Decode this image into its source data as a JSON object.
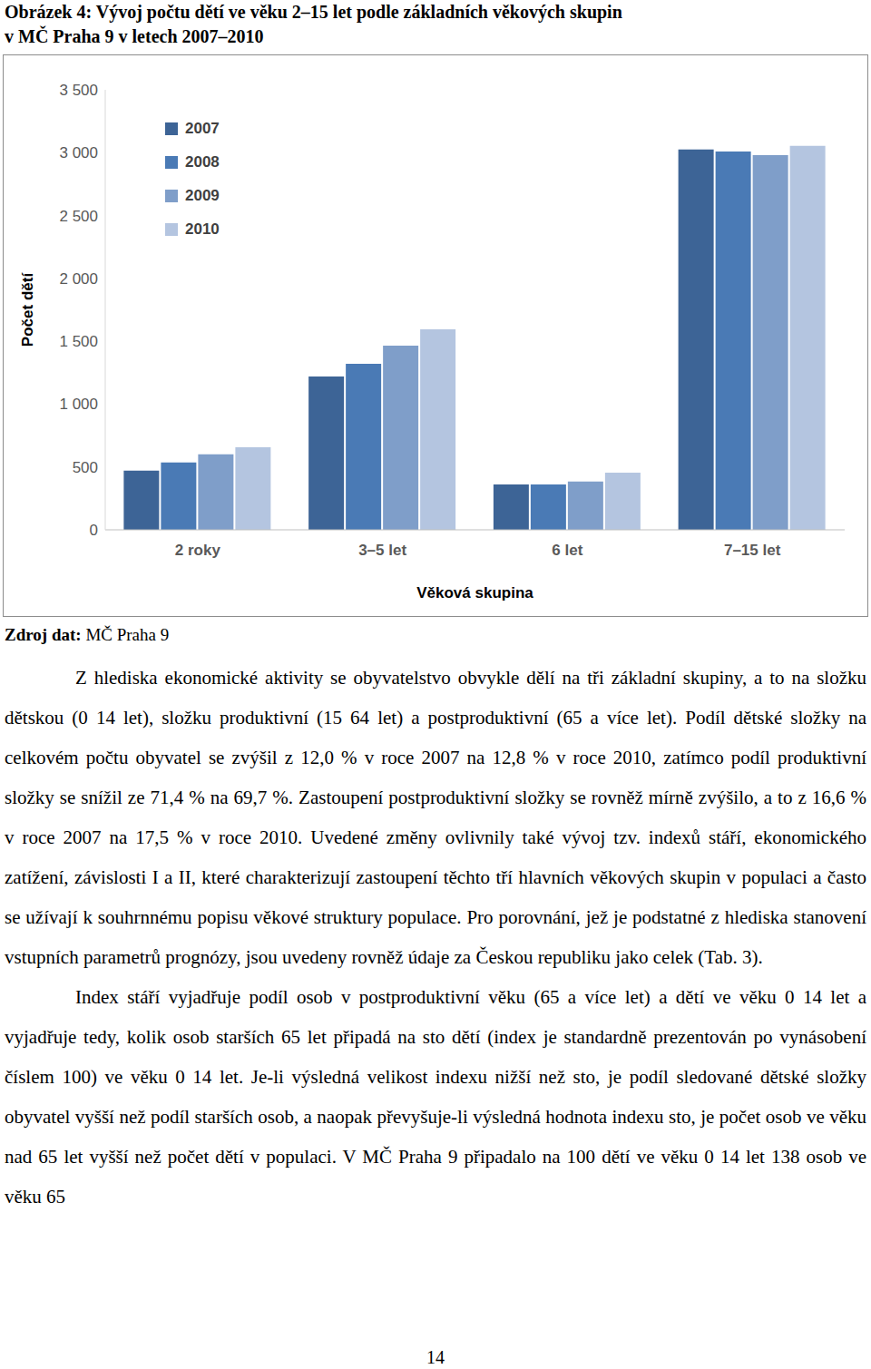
{
  "caption_lines": [
    "Obrázek 4: Vývoj počtu dětí ve věku 2–15 let podle základních věkových skupin",
    "v MČ Praha 9 v letech 2007–2010"
  ],
  "chart_data": {
    "type": "bar",
    "x_label": "Věková skupina",
    "y_label": "Počet dětí",
    "categories": [
      "2 roky",
      "3–5 let",
      "6 let",
      "7–15 let"
    ],
    "series": [
      {
        "name": "2007",
        "color": "#3d6496",
        "values": [
          470,
          1220,
          360,
          3025
        ]
      },
      {
        "name": "2008",
        "color": "#4a7ab5",
        "values": [
          535,
          1320,
          360,
          3010
        ]
      },
      {
        "name": "2009",
        "color": "#7f9ec9",
        "values": [
          600,
          1465,
          385,
          2980
        ]
      },
      {
        "name": "2010",
        "color": "#b4c5e0",
        "values": [
          657,
          1595,
          455,
          3055
        ]
      }
    ],
    "ylim": [
      0,
      3500
    ],
    "yticks": [
      0,
      500,
      {
        "value": 1000,
        "label": "1 000"
      },
      {
        "value": 1500,
        "label": "1 500"
      },
      {
        "value": 2000,
        "label": "2 000"
      },
      {
        "value": 2500,
        "label": "2 500"
      },
      {
        "value": 3000,
        "label": "3 000"
      },
      {
        "value": 3500,
        "label": "3 500"
      }
    ],
    "grid": false,
    "legend": "upper left"
  },
  "source": {
    "label": "Zdroj dat:",
    "text": "MČ Praha 9"
  },
  "paragraphs": [
    "Z hlediska ekonomické aktivity se obyvatelstvo obvykle dělí na tři základní skupiny, a to na složku dětskou (0 14 let), složku produktivní (15 64 let) a postproduktivní (65 a více let). Podíl dětské složky na celkovém počtu obyvatel se zvýšil z 12,0 % v roce 2007 na 12,8 % v roce 2010, zatímco podíl produktivní složky se snížil ze 71,4 % na 69,7 %. Zastoupení postproduktivní složky se rovněž mírně zvýšilo, a to z 16,6 % v roce 2007 na 17,5 % v roce 2010. Uvedené změny ovlivnily také vývoj tzv. indexů stáří, ekonomického zatížení, závislosti I a II, které charakterizují zastoupení těchto tří hlavních věkových skupin v populaci a často se užívají k souhrnnému popisu věkové struktury populace. Pro porovnání, jež je podstatné z hlediska stanovení vstupních parametrů prognózy, jsou uvedeny rovněž údaje za Českou republiku jako celek (Tab. 3).",
    "Index stáří vyjadřuje podíl osob v postproduktivní věku (65 a více let) a dětí ve věku 0 14 let a vyjadřuje tedy, kolik osob starších 65 let připadá na sto dětí (index je standardně prezentován po vynásobení číslem 100) ve věku 0 14 let. Je-li výsledná velikost indexu nižší než sto, je podíl sledované dětské složky obyvatel vyšší než podíl starších osob, a naopak převyšuje-li výsledná hodnota indexu sto, je počet osob ve věku nad 65 let vyšší než počet dětí v populaci. V MČ Praha 9 připadalo na 100 dětí ve věku 0 14 let 138 osob ve věku 65"
  ],
  "page_number": "14"
}
